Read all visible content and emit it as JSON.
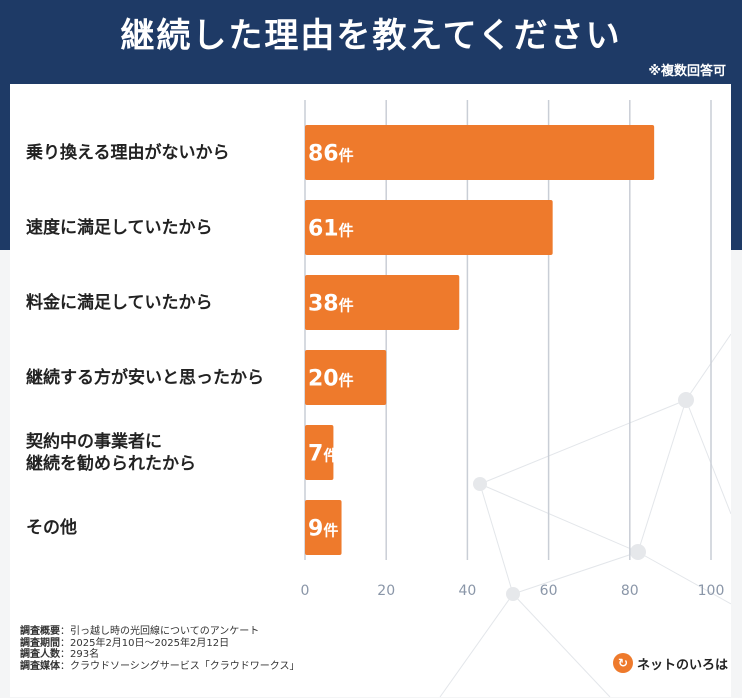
{
  "header": {
    "title": "継続した理由を教えてください",
    "note": "※複数回答可"
  },
  "chart_data": {
    "type": "bar",
    "orientation": "horizontal",
    "categories": [
      [
        "乗り換える理由がないから"
      ],
      [
        "速度に満足していたから"
      ],
      [
        "料金に満足していたから"
      ],
      [
        "継続する方が安いと思ったから"
      ],
      [
        "契約中の事業者に",
        "継続を勧められたから"
      ],
      [
        "その他"
      ]
    ],
    "values": [
      86,
      61,
      38,
      20,
      7,
      9
    ],
    "value_suffix": "件",
    "xlim": [
      0,
      100
    ],
    "xticks": [
      "0",
      "20",
      "40",
      "60",
      "80",
      "100"
    ],
    "grid": true,
    "bar_color": "#ee7a2c"
  },
  "footer": {
    "lines": [
      {
        "key": "調査概要",
        "value": "：引っ越し時の光回線についてのアンケート"
      },
      {
        "key": "調査期間",
        "value": "：2025年2月10日〜2025年2月12日"
      },
      {
        "key": "調査人数",
        "value": "：293名"
      },
      {
        "key": "調査媒体",
        "value": "：クラウドソーシングサービス「クラウドワークス」"
      }
    ]
  },
  "logo": {
    "text": "ネットのいろは"
  }
}
